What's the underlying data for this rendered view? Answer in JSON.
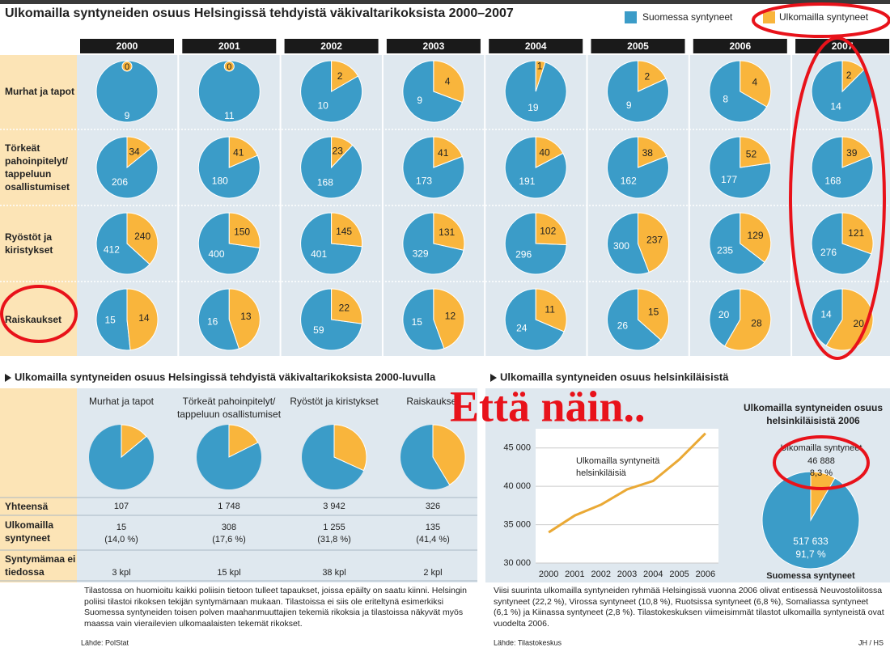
{
  "header": {
    "title": "Ulkomailla syntyneiden osuus Helsingissä tehdyistä väkivaltarikoksista 2000–2007",
    "legend": [
      {
        "name": "Suomessa syntyneet",
        "color": "#3b9cc8"
      },
      {
        "name": "Ulkomailla syntyneet",
        "color": "#f9b53c"
      }
    ]
  },
  "grid": {
    "years": [
      "2000",
      "2001",
      "2002",
      "2003",
      "2004",
      "2005",
      "2006",
      "2007"
    ],
    "rows": [
      {
        "label": "Murhat ja tapot",
        "values": [
          [
            9,
            0
          ],
          [
            11,
            0
          ],
          [
            10,
            2
          ],
          [
            9,
            4
          ],
          [
            19,
            1
          ],
          [
            9,
            2
          ],
          [
            8,
            4
          ],
          [
            14,
            2
          ]
        ]
      },
      {
        "label": "Törkeät pahoinpitelyt/ tappeluun osallistumiset",
        "values": [
          [
            206,
            34
          ],
          [
            180,
            41
          ],
          [
            168,
            23
          ],
          [
            173,
            41
          ],
          [
            191,
            40
          ],
          [
            162,
            38
          ],
          [
            177,
            52
          ],
          [
            168,
            39
          ]
        ]
      },
      {
        "label": "Ryöstöt ja kiristykset",
        "values": [
          [
            412,
            240
          ],
          [
            400,
            150
          ],
          [
            401,
            145
          ],
          [
            329,
            131
          ],
          [
            296,
            102
          ],
          [
            300,
            237
          ],
          [
            235,
            129
          ],
          [
            276,
            121
          ]
        ]
      },
      {
        "label": "Raiskaukset",
        "values": [
          [
            15,
            14
          ],
          [
            16,
            13
          ],
          [
            59,
            22
          ],
          [
            15,
            12
          ],
          [
            24,
            11
          ],
          [
            26,
            15
          ],
          [
            20,
            28
          ],
          [
            14,
            20
          ]
        ]
      }
    ]
  },
  "summary": {
    "title": "Ulkomailla syntyneiden osuus Helsingissä tehdyistä väkivaltarikoksista 2000-luvulla",
    "row_labels": {
      "total": "Yhteensä",
      "foreign": "Ulkomailla syntyneet",
      "unknown": "Syntymämaa ei tiedossa"
    },
    "columns": [
      {
        "label": "Murhat ja tapot",
        "total": 107,
        "foreign": 15,
        "foreign_pct": {
          "value": 14.0,
          "label": "(14,0 %)"
        },
        "unknown": "3 kpl"
      },
      {
        "label": "Törkeät pahoinpitelyt/ tappeluun osallistumiset",
        "total": {
          "value": 1748,
          "label": "1 748"
        },
        "foreign": 308,
        "foreign_pct": {
          "value": 17.6,
          "label": "(17,6 %)"
        },
        "unknown": "15 kpl"
      },
      {
        "label": "Ryöstöt ja kiristykset",
        "total": {
          "value": 3942,
          "label": "3 942"
        },
        "foreign": {
          "value": 1255,
          "label": "1 255"
        },
        "foreign_pct": {
          "value": 31.8,
          "label": "(31,8 %)"
        },
        "unknown": "38 kpl"
      },
      {
        "label": "Raiskaukset",
        "total": 326,
        "foreign": 135,
        "foreign_pct": {
          "value": 41.4,
          "label": "(41,4 %)"
        },
        "unknown": "2 kpl"
      }
    ],
    "note": "Tilastossa on huomioitu kaikki poliisin tietoon tulleet tapaukset, joissa epäilty on saatu kiinni. Helsingin poliisi tilastoi rikoksen tekijän syntymämaan mukaan. Tilastoissa ei siis ole eriteltynä esimerkiksi Suomessa syntyneiden toisen polven maahanmuuttajien tekemiä rikoksia ja tilastoissa näkyvät myös maassa vain vierailevien ulkomaalaisten tekemät rikokset.",
    "source": "Lähde: PolStat"
  },
  "population": {
    "title": "Ulkomailla syntyneiden osuus helsinkiläisistä",
    "line": {
      "type": "line",
      "annotation": "Ulkomailla syntyneitä helsinkiläisiä",
      "categories": [
        "2000",
        "2001",
        "2002",
        "2003",
        "2004",
        "2005",
        "2006"
      ],
      "values": [
        34000,
        36200,
        37600,
        39600,
        40700,
        43500,
        46900
      ],
      "color": "#eaa935",
      "ylim": [
        30000,
        47500
      ],
      "yticks": [
        {
          "value": 30000,
          "label": "30 000"
        },
        {
          "value": 35000,
          "label": "35 000"
        },
        {
          "value": 40000,
          "label": "40 000"
        },
        {
          "value": 45000,
          "label": "45 000"
        }
      ],
      "grid": true
    },
    "pie": {
      "type": "pie",
      "title": "Ulkomailla syntyneiden osuus helsinkiläisistä 2006",
      "slices": [
        {
          "name": "Ulkomailla syntyneet",
          "value": {
            "value": 46888,
            "label": "46 888"
          },
          "pct": {
            "value": 8.3,
            "label": "8,3 %"
          },
          "color": "#f9b53c"
        },
        {
          "name": "Suomessa syntyneet",
          "value": {
            "value": 517633,
            "label": "517 633"
          },
          "pct": {
            "value": 91.7,
            "label": "91,7 %"
          },
          "color": "#3b9cc8"
        }
      ]
    },
    "note": "Viisi suurinta ulkomailla syntyneiden ryhmää Helsingissä vuonna 2006 olivat entisessä Neuvostoliitossa syntyneet (22,2 %), Virossa syntyneet (10,8 %), Ruotsissa syntyneet (6,8 %), Somaliassa syntyneet (6,1 %) ja Kiinassa syntyneet (2,8 %). Tilastokeskuksen viimeisimmät tilastot ulkomailla syntyneistä ovat vuodelta 2006.",
    "source": "Lähde: Tilastokeskus"
  },
  "credit": "JH / HS",
  "annotation": "Että näin.."
}
